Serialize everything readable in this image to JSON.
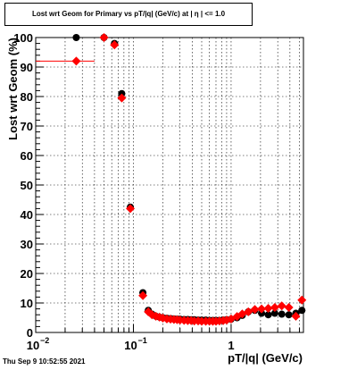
{
  "chart_data": {
    "type": "scatter",
    "title": "Lost wrt Geom for Primary vs pT/|q| (GeV/c) at |  η  | <= 1.0",
    "xlabel": "pT/|q| (GeV/c)",
    "ylabel": "Lost wrt Geom (%)",
    "xscale": "log",
    "xlim": [
      0.01,
      5.5
    ],
    "ylim": [
      0,
      100
    ],
    "x_ticks": [
      0.01,
      0.1,
      1
    ],
    "x_tick_labels": [
      "10",
      "10",
      "1"
    ],
    "x_tick_exponents": [
      "−2",
      "−1",
      ""
    ],
    "y_ticks": [
      0,
      10,
      20,
      30,
      40,
      50,
      60,
      70,
      80,
      90,
      100
    ],
    "y_tick_labels": [
      "0",
      "10",
      "20",
      "30",
      "40",
      "50",
      "60",
      "70",
      "80",
      "90",
      "100"
    ],
    "grid": true,
    "series": [
      {
        "color": "#000000",
        "marker": "circle",
        "points": [
          {
            "x": 0.026,
            "y": 100,
            "xlo": 0.01,
            "xhi": 0.05
          },
          {
            "x": 0.05,
            "y": 100
          },
          {
            "x": 0.064,
            "y": 98
          },
          {
            "x": 0.076,
            "y": 81
          },
          {
            "x": 0.093,
            "y": 42.5
          },
          {
            "x": 0.125,
            "y": 13.5
          },
          {
            "x": 0.142,
            "y": 7.5
          },
          {
            "x": 0.155,
            "y": 6.2
          },
          {
            "x": 0.17,
            "y": 5.5
          },
          {
            "x": 0.185,
            "y": 5.2
          },
          {
            "x": 0.2,
            "y": 5
          },
          {
            "x": 0.22,
            "y": 4.8
          },
          {
            "x": 0.24,
            "y": 4.7
          },
          {
            "x": 0.26,
            "y": 4.6
          },
          {
            "x": 0.28,
            "y": 4.5
          },
          {
            "x": 0.3,
            "y": 4.5
          },
          {
            "x": 0.33,
            "y": 4.4
          },
          {
            "x": 0.36,
            "y": 4.4
          },
          {
            "x": 0.39,
            "y": 4.3
          },
          {
            "x": 0.42,
            "y": 4.3
          },
          {
            "x": 0.46,
            "y": 4.2
          },
          {
            "x": 0.5,
            "y": 4.2
          },
          {
            "x": 0.55,
            "y": 4.2
          },
          {
            "x": 0.6,
            "y": 4.1
          },
          {
            "x": 0.65,
            "y": 4.1
          },
          {
            "x": 0.7,
            "y": 4.1
          },
          {
            "x": 0.76,
            "y": 4.1
          },
          {
            "x": 0.83,
            "y": 4.2
          },
          {
            "x": 0.9,
            "y": 4.3
          },
          {
            "x": 1,
            "y": 4.5
          },
          {
            "x": 1.15,
            "y": 5
          },
          {
            "x": 1.3,
            "y": 5.8
          },
          {
            "x": 1.5,
            "y": 7
          },
          {
            "x": 1.75,
            "y": 7.5
          },
          {
            "x": 2.05,
            "y": 6.5
          },
          {
            "x": 2.4,
            "y": 6
          },
          {
            "x": 2.8,
            "y": 6.5
          },
          {
            "x": 3.3,
            "y": 6.2
          },
          {
            "x": 3.9,
            "y": 6
          },
          {
            "x": 4.6,
            "y": 6.5
          },
          {
            "x": 5.3,
            "y": 7.5
          }
        ]
      },
      {
        "color": "#ff0000",
        "marker": "diamond",
        "points": [
          {
            "x": 0.026,
            "y": 92,
            "xlo": 0.01,
            "xhi": 0.04
          },
          {
            "x": 0.05,
            "y": 100
          },
          {
            "x": 0.064,
            "y": 97.5
          },
          {
            "x": 0.076,
            "y": 79.5
          },
          {
            "x": 0.093,
            "y": 42
          },
          {
            "x": 0.125,
            "y": 12.5
          },
          {
            "x": 0.142,
            "y": 7
          },
          {
            "x": 0.155,
            "y": 6
          },
          {
            "x": 0.17,
            "y": 5.5
          },
          {
            "x": 0.185,
            "y": 5.2
          },
          {
            "x": 0.2,
            "y": 4.9
          },
          {
            "x": 0.22,
            "y": 4.6
          },
          {
            "x": 0.24,
            "y": 4.5
          },
          {
            "x": 0.26,
            "y": 4.4
          },
          {
            "x": 0.28,
            "y": 4.3
          },
          {
            "x": 0.3,
            "y": 4.2
          },
          {
            "x": 0.33,
            "y": 4.1
          },
          {
            "x": 0.36,
            "y": 4
          },
          {
            "x": 0.39,
            "y": 4
          },
          {
            "x": 0.42,
            "y": 3.9
          },
          {
            "x": 0.46,
            "y": 3.9
          },
          {
            "x": 0.5,
            "y": 3.8
          },
          {
            "x": 0.55,
            "y": 3.8
          },
          {
            "x": 0.6,
            "y": 3.8
          },
          {
            "x": 0.65,
            "y": 3.8
          },
          {
            "x": 0.7,
            "y": 3.8
          },
          {
            "x": 0.76,
            "y": 3.9
          },
          {
            "x": 0.83,
            "y": 4
          },
          {
            "x": 0.9,
            "y": 4.2
          },
          {
            "x": 1,
            "y": 4.6
          },
          {
            "x": 1.15,
            "y": 5.4
          },
          {
            "x": 1.3,
            "y": 6.3
          },
          {
            "x": 1.5,
            "y": 7
          },
          {
            "x": 1.75,
            "y": 7.8
          },
          {
            "x": 2.05,
            "y": 8
          },
          {
            "x": 2.4,
            "y": 8.2
          },
          {
            "x": 2.8,
            "y": 8.5
          },
          {
            "x": 3.3,
            "y": 9
          },
          {
            "x": 3.9,
            "y": 8.5
          },
          {
            "x": 4.6,
            "y": 5.5
          },
          {
            "x": 5.3,
            "y": 11
          }
        ]
      }
    ]
  },
  "timestamp": "Thu Sep  9 10:52:55 2021"
}
